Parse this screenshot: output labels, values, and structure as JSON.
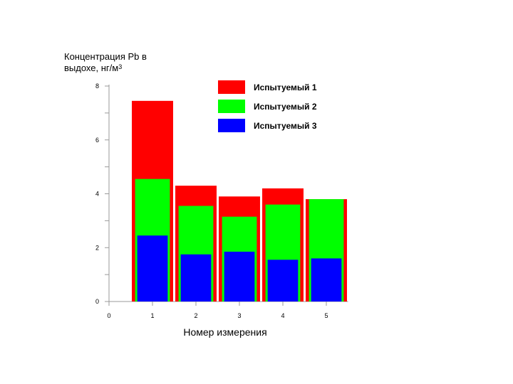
{
  "chart_data": {
    "type": "bar",
    "ylabel_line1": "Концентрация Pb в",
    "ylabel_line2": "выдохе, нг/м",
    "ylabel_sup": "3",
    "xlabel": "Номер измерения",
    "categories": [
      "1",
      "2",
      "3",
      "4",
      "5"
    ],
    "x_ticks": [
      "0",
      "1",
      "2",
      "3",
      "4",
      "5"
    ],
    "y_ticks": [
      "0",
      "2",
      "4",
      "6",
      "8"
    ],
    "ylim": [
      0,
      8
    ],
    "xlim": [
      0,
      5.5
    ],
    "grid": false,
    "legend_position": "top-right",
    "series": [
      {
        "name": "Испытуемый 1",
        "color": "#ff0000",
        "values": [
          7.45,
          4.3,
          3.9,
          4.2,
          3.8
        ]
      },
      {
        "name": "Испытуемый 2",
        "color": "#00ff00",
        "values": [
          4.55,
          3.55,
          3.15,
          3.6,
          3.8
        ]
      },
      {
        "name": "Испытуемый 3",
        "color": "#0000ff",
        "values": [
          2.45,
          1.75,
          1.85,
          1.55,
          1.6
        ]
      }
    ]
  }
}
